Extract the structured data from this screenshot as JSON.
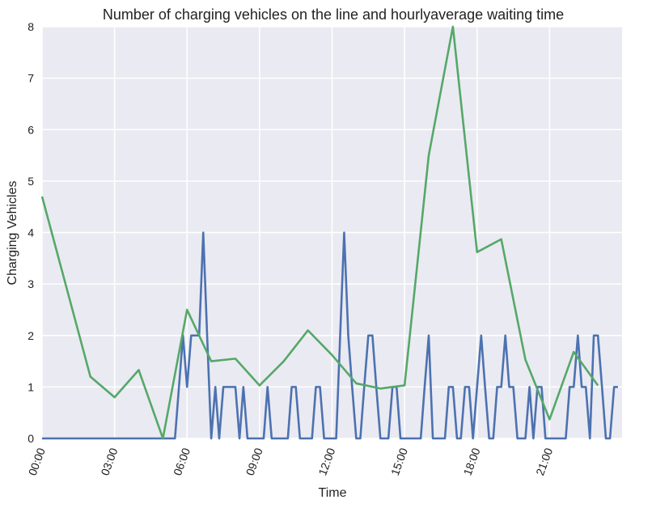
{
  "chart_data": {
    "type": "line",
    "title": "Number of charging vehicles on the line and hourlyaverage waiting time",
    "xlabel": "Time",
    "ylabel": "Charging Vehicles",
    "ylim": [
      0,
      8
    ],
    "xlim": [
      0,
      24
    ],
    "grid": true,
    "background": "#eaeaf2",
    "y_ticks": [
      0,
      1,
      2,
      3,
      4,
      5,
      6,
      7,
      8
    ],
    "x_ticks": [
      {
        "value": 0,
        "label": "00:00"
      },
      {
        "value": 3,
        "label": "03:00"
      },
      {
        "value": 6,
        "label": "06:00"
      },
      {
        "value": 9,
        "label": "09:00"
      },
      {
        "value": 12,
        "label": "12:00"
      },
      {
        "value": 15,
        "label": "15:00"
      },
      {
        "value": 18,
        "label": "18:00"
      },
      {
        "value": 21,
        "label": "21:00"
      }
    ],
    "series": [
      {
        "color": "#4c72b0",
        "points": [
          [
            0,
            0
          ],
          [
            5.5,
            0
          ],
          [
            5.83,
            2
          ],
          [
            6,
            1
          ],
          [
            6.17,
            2
          ],
          [
            6.33,
            2
          ],
          [
            6.5,
            2
          ],
          [
            6.67,
            4
          ],
          [
            6.83,
            2
          ],
          [
            7,
            0
          ],
          [
            7.17,
            1
          ],
          [
            7.33,
            0
          ],
          [
            7.5,
            1
          ],
          [
            7.67,
            1
          ],
          [
            7.83,
            1
          ],
          [
            8,
            1
          ],
          [
            8.17,
            0
          ],
          [
            8.33,
            1
          ],
          [
            8.5,
            0
          ],
          [
            9.17,
            0
          ],
          [
            9.33,
            1
          ],
          [
            9.5,
            0
          ],
          [
            10.17,
            0
          ],
          [
            10.33,
            1
          ],
          [
            10.5,
            1
          ],
          [
            10.67,
            0
          ],
          [
            11.17,
            0
          ],
          [
            11.33,
            1
          ],
          [
            11.5,
            1
          ],
          [
            11.67,
            0
          ],
          [
            12.17,
            0
          ],
          [
            12.5,
            4
          ],
          [
            12.67,
            2
          ],
          [
            12.83,
            1
          ],
          [
            13,
            0
          ],
          [
            13.17,
            0
          ],
          [
            13.33,
            1
          ],
          [
            13.5,
            2
          ],
          [
            13.67,
            2
          ],
          [
            13.83,
            1
          ],
          [
            14,
            0
          ],
          [
            14.33,
            0
          ],
          [
            14.5,
            1
          ],
          [
            14.67,
            1
          ],
          [
            14.83,
            0
          ],
          [
            15.67,
            0
          ],
          [
            15.83,
            1
          ],
          [
            16,
            2
          ],
          [
            16.17,
            0
          ],
          [
            16.67,
            0
          ],
          [
            16.83,
            1
          ],
          [
            17,
            1
          ],
          [
            17.17,
            0
          ],
          [
            17.33,
            0
          ],
          [
            17.5,
            1
          ],
          [
            17.67,
            1
          ],
          [
            17.83,
            0
          ],
          [
            18,
            1
          ],
          [
            18.17,
            2
          ],
          [
            18.33,
            1
          ],
          [
            18.5,
            0
          ],
          [
            18.67,
            0
          ],
          [
            18.83,
            1
          ],
          [
            19,
            1
          ],
          [
            19.17,
            2
          ],
          [
            19.33,
            1
          ],
          [
            19.5,
            1
          ],
          [
            19.67,
            0
          ],
          [
            20,
            0
          ],
          [
            20.17,
            1
          ],
          [
            20.33,
            0
          ],
          [
            20.5,
            1
          ],
          [
            20.67,
            1
          ],
          [
            20.83,
            0
          ],
          [
            21.67,
            0
          ],
          [
            21.83,
            1
          ],
          [
            22,
            1
          ],
          [
            22.17,
            2
          ],
          [
            22.33,
            1
          ],
          [
            22.5,
            1
          ],
          [
            22.67,
            0
          ],
          [
            22.83,
            2
          ],
          [
            23,
            2
          ],
          [
            23.17,
            1
          ],
          [
            23.33,
            0
          ],
          [
            23.5,
            0
          ],
          [
            23.67,
            1
          ],
          [
            23.83,
            1
          ]
        ]
      },
      {
        "color": "#55a868",
        "points": [
          [
            0,
            4.7
          ],
          [
            2,
            1.2
          ],
          [
            3,
            0.8
          ],
          [
            4,
            1.33
          ],
          [
            5,
            0.0
          ],
          [
            6,
            2.5
          ],
          [
            7,
            1.5
          ],
          [
            8,
            1.55
          ],
          [
            9,
            1.03
          ],
          [
            10,
            1.5
          ],
          [
            11,
            2.1
          ],
          [
            12,
            1.62
          ],
          [
            13,
            1.07
          ],
          [
            14,
            0.97
          ],
          [
            15,
            1.03
          ],
          [
            16,
            5.5
          ],
          [
            17,
            8.0
          ],
          [
            18,
            3.62
          ],
          [
            19,
            3.87
          ],
          [
            20,
            1.53
          ],
          [
            21,
            0.37
          ],
          [
            22,
            1.68
          ],
          [
            23,
            1.03
          ]
        ]
      }
    ]
  }
}
